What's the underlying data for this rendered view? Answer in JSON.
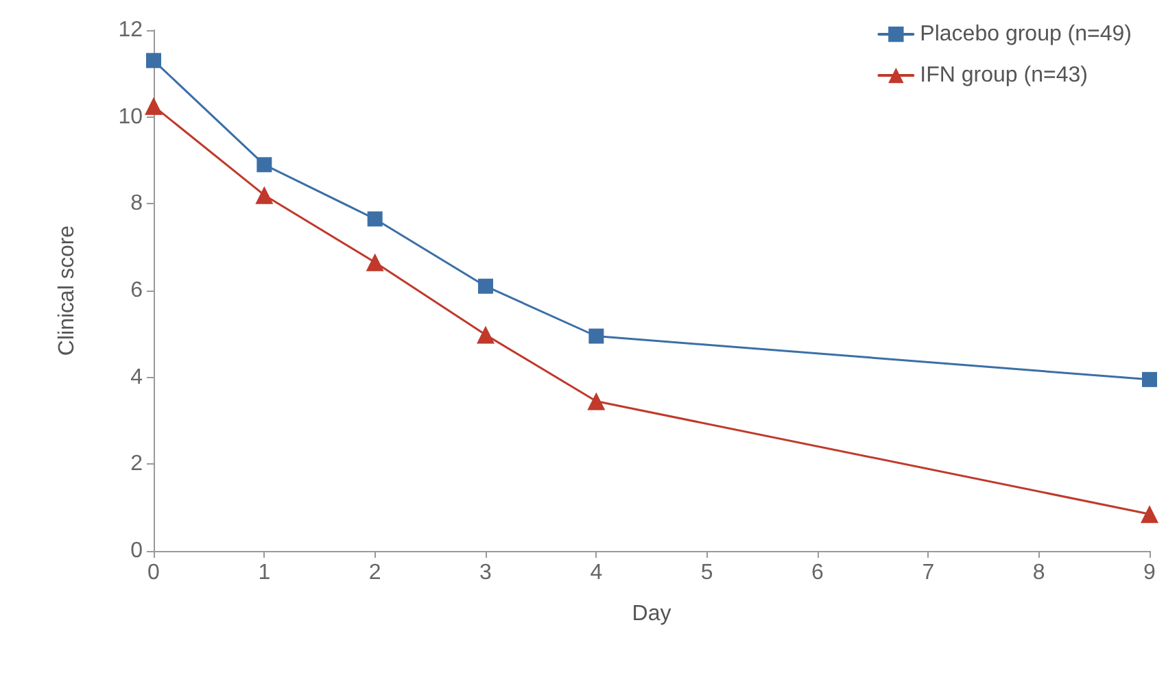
{
  "chart_data": {
    "type": "line",
    "xlabel": "Day",
    "ylabel": "Clinical score",
    "x": [
      0,
      1,
      2,
      3,
      4,
      9
    ],
    "series": [
      {
        "name": "Placebo group (n=49)",
        "color": "#3b6fa6",
        "marker": "square",
        "values": [
          11.3,
          8.9,
          7.65,
          6.1,
          4.95,
          3.95
        ]
      },
      {
        "name": "IFN group (n=43)",
        "color": "#c0392b",
        "marker": "triangle",
        "values": [
          10.25,
          8.2,
          6.65,
          4.98,
          3.45,
          0.85
        ]
      }
    ],
    "xlim": [
      0,
      9
    ],
    "xticks": [
      0,
      1,
      2,
      3,
      4,
      5,
      6,
      7,
      8,
      9
    ],
    "ylim": [
      0,
      12
    ],
    "yticks": [
      0,
      2,
      4,
      6,
      8,
      10,
      12
    ],
    "grid": false,
    "legend": "top right",
    "line_style": "solid"
  }
}
